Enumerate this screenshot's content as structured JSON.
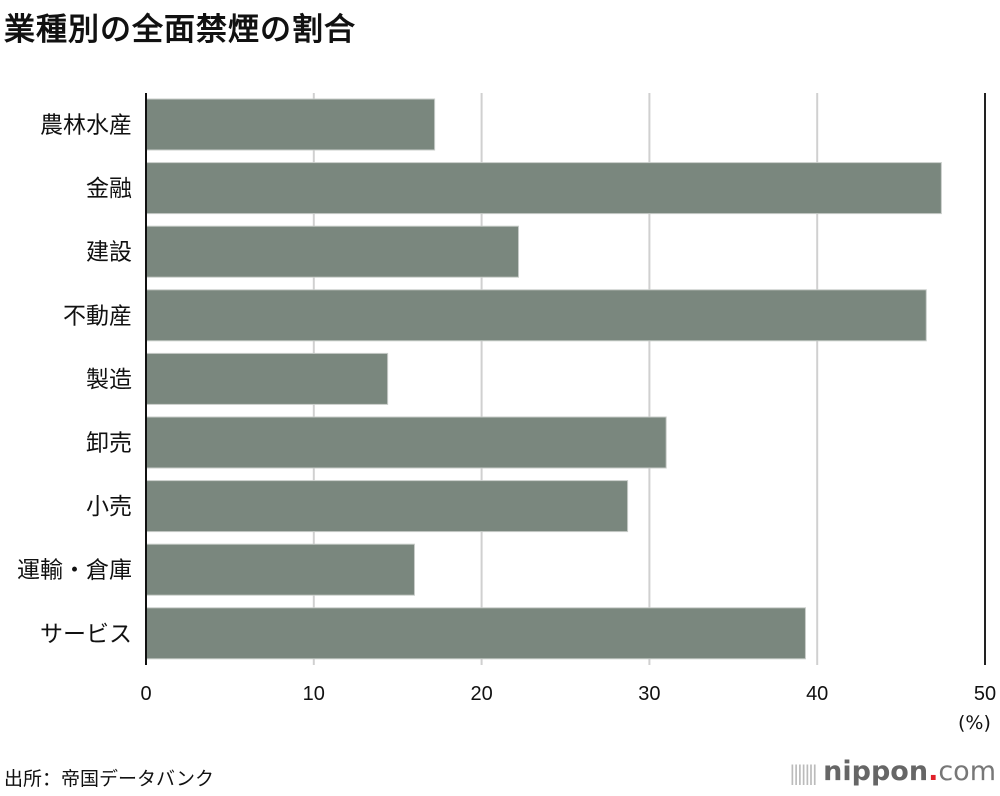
{
  "chart_data": {
    "type": "bar",
    "orientation": "horizontal",
    "title": "業種別の全面禁煙の割合",
    "categories": [
      "農林水産",
      "金融",
      "建設",
      "不動産",
      "製造",
      "卸売",
      "小売",
      "運輸・倉庫",
      "サービス"
    ],
    "values": [
      17.2,
      47.4,
      22.2,
      46.5,
      14.4,
      31.0,
      28.7,
      16.0,
      39.3
    ],
    "xlim": [
      0,
      50
    ],
    "xticks": [
      "0",
      "10",
      "20",
      "30",
      "40",
      "50"
    ],
    "xlabel": "(%)",
    "grid": true,
    "bar_color": "#7a877e",
    "source": "出所：帝国データバンク"
  },
  "logo": {
    "name": "nippon",
    "dot": ".",
    "suffix": "com"
  }
}
